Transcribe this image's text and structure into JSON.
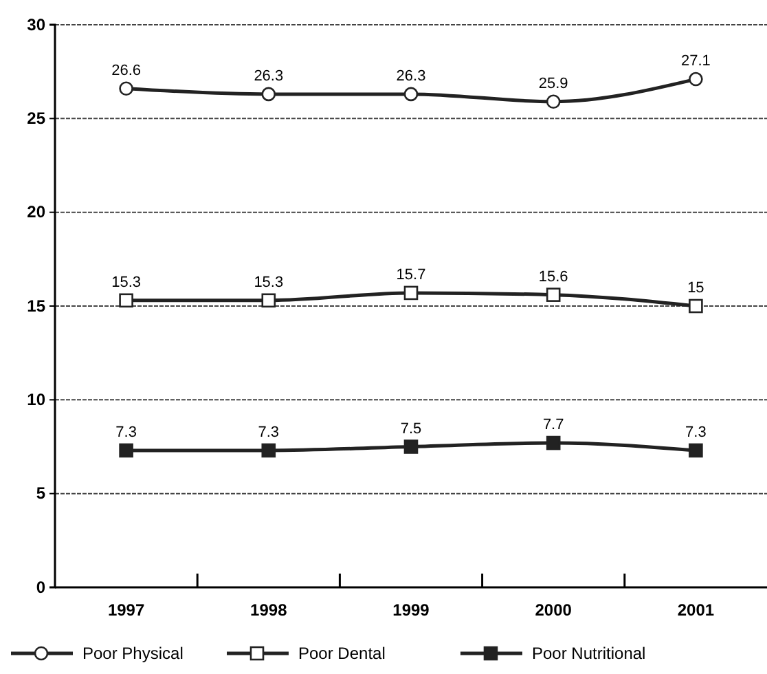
{
  "chart_data": {
    "type": "line",
    "categories": [
      "1997",
      "1998",
      "1999",
      "2000",
      "2001"
    ],
    "series": [
      {
        "name": "Poor Physical",
        "color": "#222222",
        "marker": "circle",
        "values": [
          26.6,
          26.3,
          26.3,
          25.9,
          27.1
        ]
      },
      {
        "name": "Poor Dental",
        "color": "#222222",
        "marker": "square",
        "values": [
          15.3,
          15.3,
          15.7,
          15.6,
          15
        ]
      },
      {
        "name": "Poor Nutritional",
        "color": "#222222",
        "marker": "square",
        "values": [
          7.3,
          7.3,
          7.5,
          7.7,
          7.3
        ]
      }
    ],
    "ylim": [
      0,
      30
    ],
    "yticks": [
      0,
      5,
      10,
      15,
      20,
      25,
      30
    ],
    "grid": "y",
    "legend": "bottom",
    "data_labels": true,
    "line_style": "solid"
  }
}
